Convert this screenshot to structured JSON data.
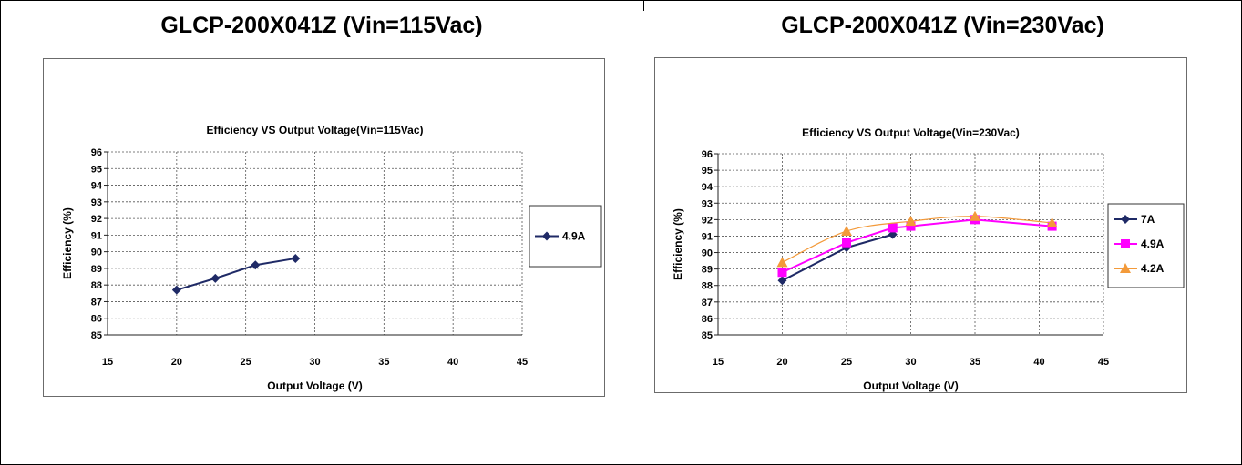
{
  "panels": [
    {
      "heading": "GLCP-200X041Z (Vin=115Vac)"
    },
    {
      "heading": "GLCP-200X041Z (Vin=230Vac)"
    }
  ],
  "chart_data": [
    {
      "type": "line",
      "title": "Efficiency VS Output Voltage(Vin=115Vac)",
      "xlabel": "Output Voltage (V)",
      "ylabel": "Efficiency (%)",
      "xlim": [
        15,
        45
      ],
      "ylim": [
        85,
        96
      ],
      "xticks": [
        15,
        20,
        25,
        30,
        35,
        40,
        45
      ],
      "yticks": [
        85,
        86,
        87,
        88,
        89,
        90,
        91,
        92,
        93,
        94,
        95,
        96
      ],
      "grid": true,
      "legend_position": "right",
      "series": [
        {
          "name": "4.9A",
          "color": "#1f2a66",
          "marker": "diamond",
          "x": [
            20,
            22.8,
            25.7,
            28.6
          ],
          "y": [
            87.7,
            88.4,
            89.2,
            89.6
          ]
        }
      ]
    },
    {
      "type": "line",
      "title": "Efficiency VS Output Voltage(Vin=230Vac)",
      "xlabel": "Output Voltage (V)",
      "ylabel": "Efficiency (%)",
      "xlim": [
        15,
        45
      ],
      "ylim": [
        85,
        96
      ],
      "xticks": [
        15,
        20,
        25,
        30,
        35,
        40,
        45
      ],
      "yticks": [
        85,
        86,
        87,
        88,
        89,
        90,
        91,
        92,
        93,
        94,
        95,
        96
      ],
      "grid": true,
      "legend_position": "right",
      "series": [
        {
          "name": "7A",
          "color": "#1f2a66",
          "marker": "diamond",
          "x": [
            20,
            25,
            28.6
          ],
          "y": [
            88.3,
            90.3,
            91.1
          ]
        },
        {
          "name": "4.9A",
          "color": "#ff00ff",
          "marker": "square",
          "x": [
            20,
            25,
            28.6,
            30,
            35,
            41
          ],
          "y": [
            88.8,
            90.6,
            91.5,
            91.6,
            92.0,
            91.6
          ]
        },
        {
          "name": "4.2A",
          "color": "#f39a3a",
          "marker": "triangle",
          "x": [
            20,
            25,
            30,
            35,
            41
          ],
          "y": [
            89.4,
            91.3,
            91.9,
            92.2,
            91.8
          ]
        }
      ]
    }
  ]
}
